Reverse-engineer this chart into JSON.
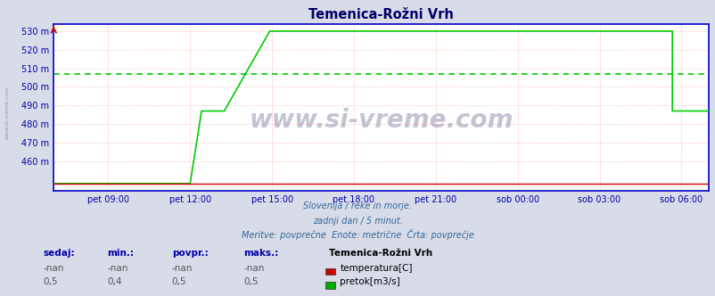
{
  "title": "Temenica-Rožni Vrh",
  "bg_color": "#d8dce8",
  "plot_bg_color": "#ffffff",
  "axis_color": "#0000cc",
  "title_color": "#000066",
  "label_color": "#0000aa",
  "ylim": [
    444,
    534
  ],
  "ytick_positions": [
    448,
    460,
    470,
    480,
    490,
    500,
    510,
    520,
    530
  ],
  "ytick_labels": [
    "",
    "460 m",
    "470 m",
    "480 m",
    "490 m",
    "500 m",
    "510 m",
    "520 m",
    "530 m"
  ],
  "xlim": [
    0,
    288
  ],
  "xtick_positions": [
    24,
    60,
    96,
    132,
    168,
    204,
    240,
    276
  ],
  "xtick_labels": [
    "pet 09:00",
    "pet 12:00",
    "pet 15:00",
    "pet 18:00",
    "pet 21:00",
    "sob 00:00",
    "sob 03:00",
    "sob 06:00"
  ],
  "footer_line1": "Slovenija / reke in morje.",
  "footer_line2": "zadnji dan / 5 minut.",
  "footer_line3": "Meritve: povprečne  Enote: metrične  Črta: povprečje",
  "watermark": "www.si-vreme.com",
  "legend_title": "Temenica-Rožni Vrh",
  "legend_items": [
    {
      "label": "temperatura[C]",
      "color": "#cc0000"
    },
    {
      "label": "pretok[m3/s]",
      "color": "#00aa00"
    }
  ],
  "stats_headers": [
    "sedaj:",
    "min.:",
    "povpr.:",
    "maks.:"
  ],
  "stats_temp": [
    "-nan",
    "-nan",
    "-nan",
    "-nan"
  ],
  "stats_flow": [
    "0,5",
    "0,4",
    "0,5",
    "0,5"
  ],
  "temp_line_color": "#cc0000",
  "flow_line_color": "#00cc00",
  "avg_line_color": "#00cc00",
  "avg_value": 507,
  "flow_data_x": [
    0,
    60,
    60,
    65,
    65,
    75,
    75,
    95,
    95,
    272,
    272,
    276,
    276,
    288
  ],
  "flow_data_y": [
    448,
    448,
    448,
    487,
    487,
    487,
    487,
    530,
    530,
    530,
    487,
    487,
    487,
    487
  ],
  "temp_data_x": [
    0,
    288
  ],
  "temp_data_y": [
    448,
    448
  ],
  "left_watermark": "www.si-vreme.com"
}
